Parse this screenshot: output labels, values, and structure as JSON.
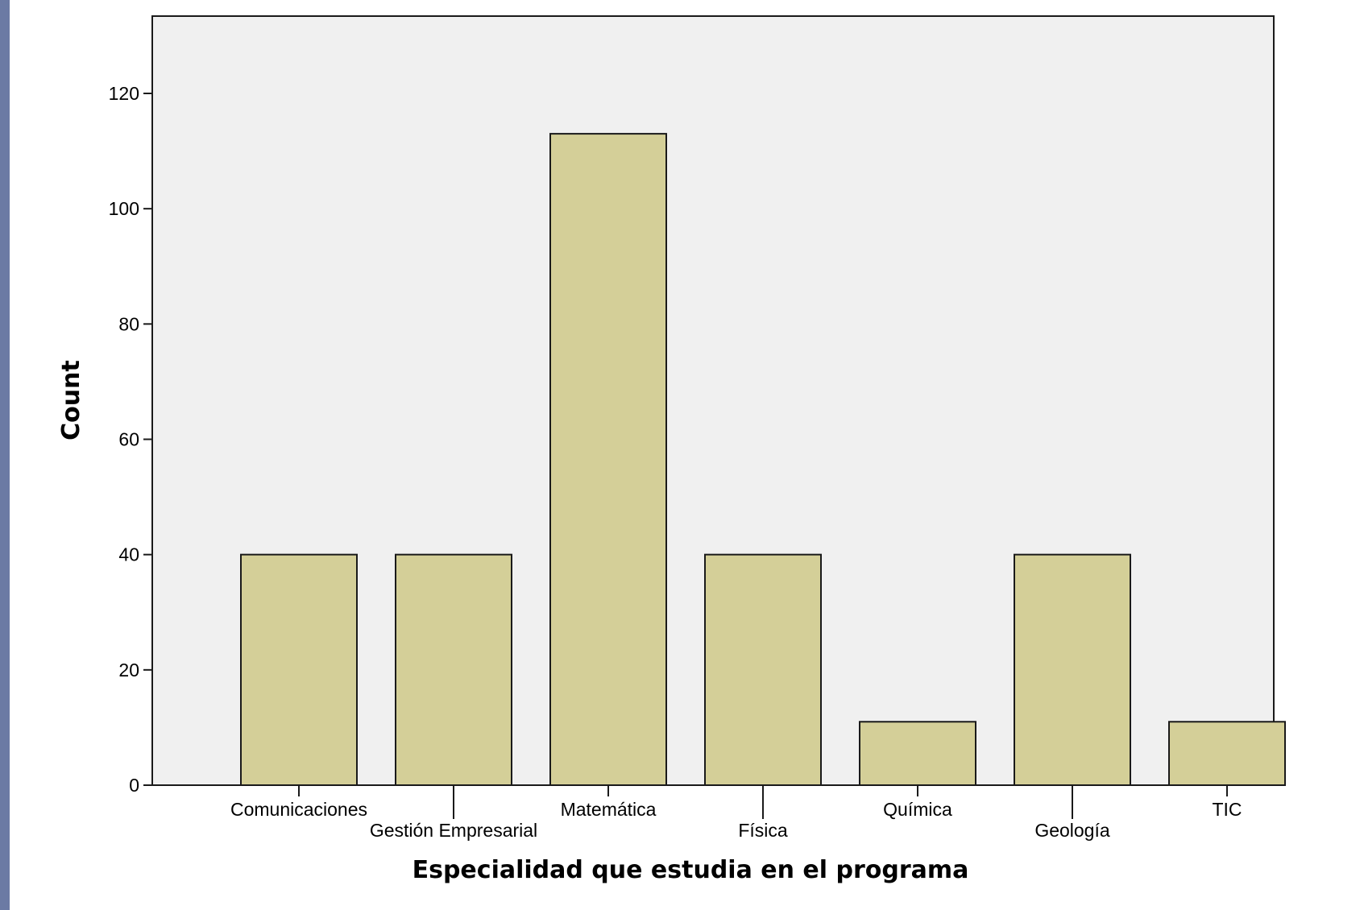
{
  "chart_data": {
    "type": "bar",
    "title": "",
    "xlabel": "Especialidad que estudia en el programa",
    "ylabel": "Count",
    "categories": [
      "Comunicaciones",
      "Gestión Empresarial",
      "Matemática",
      "Física",
      "Química",
      "Geología",
      "TIC"
    ],
    "values": [
      40,
      40,
      113,
      40,
      11,
      40,
      11
    ],
    "ylim": [
      0,
      120
    ],
    "yticks": [
      0,
      20,
      40,
      60,
      80,
      100,
      120
    ],
    "grid": false,
    "legend": "none",
    "colors": {
      "bar_fill": "#d4cf98",
      "bar_stroke": "#1a1a1a",
      "plot_background": "#f0f0f0",
      "outer_frame": "#6b7aa4"
    }
  }
}
